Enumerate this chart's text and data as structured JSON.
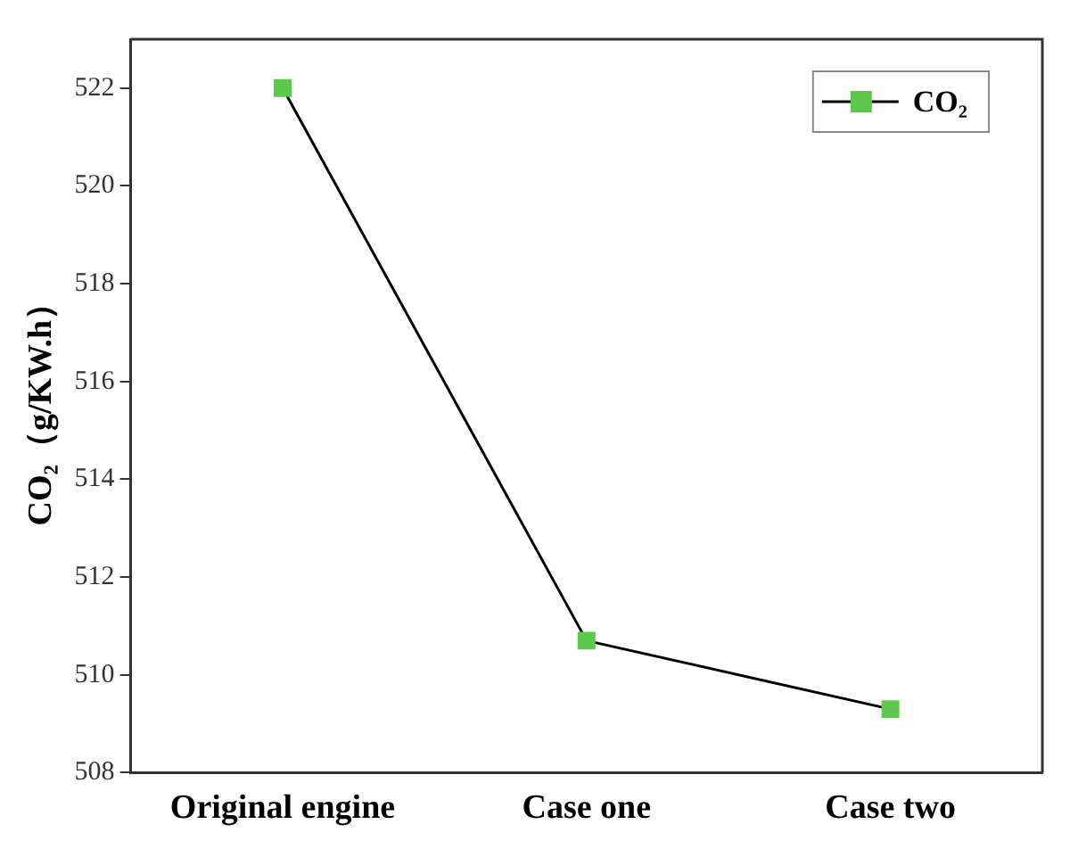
{
  "chart_data": {
    "type": "line",
    "ylabel": "CO₂（g/KW.h）",
    "categories": [
      "Original engine",
      "Case one",
      "Case two"
    ],
    "series": [
      {
        "name": "CO₂",
        "color": "#5cc94c",
        "values": [
          522.0,
          510.7,
          509.3
        ]
      }
    ],
    "ylim": [
      508,
      523
    ],
    "yticks": [
      508,
      510,
      512,
      514,
      516,
      518,
      520,
      522
    ],
    "grid": false,
    "legend": "top right",
    "marker": "square",
    "line_style": "solid"
  }
}
